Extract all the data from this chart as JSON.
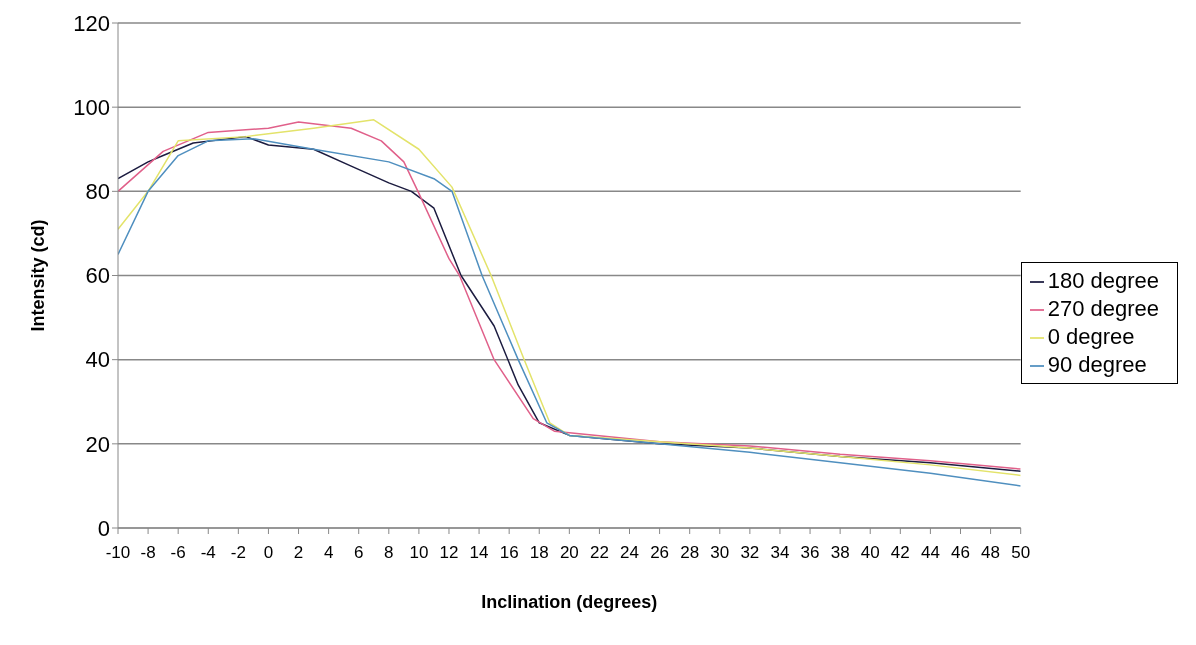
{
  "chart_data": {
    "type": "line",
    "xlabel": "Inclination (degrees)",
    "ylabel": "Intensity (cd)",
    "xlim": [
      -10,
      50
    ],
    "xticks": [
      -10,
      -8,
      -6,
      -4,
      -2,
      0,
      2,
      4,
      6,
      8,
      10,
      12,
      14,
      16,
      18,
      20,
      22,
      24,
      26,
      28,
      30,
      32,
      34,
      36,
      38,
      40,
      42,
      44,
      46,
      48,
      50
    ],
    "ylim": [
      0,
      120
    ],
    "yticks": [
      0,
      20,
      40,
      60,
      80,
      100,
      120
    ],
    "grid": "y",
    "legend": "right",
    "marker": "none",
    "line_style": "solid",
    "series": [
      {
        "name": "180 degree",
        "color": "#1c1c40",
        "x": [
          -10,
          -8,
          -7,
          -5,
          -1.5,
          0,
          3,
          5.5,
          8,
          9.5,
          11,
          12.8,
          15,
          16.6,
          18,
          20,
          26,
          32,
          38,
          44,
          50
        ],
        "values": [
          83,
          87,
          88.5,
          91.5,
          93,
          91,
          90,
          86,
          82,
          80,
          76,
          60,
          48,
          34,
          25,
          22,
          20,
          19,
          17,
          15.5,
          13.5
        ]
      },
      {
        "name": "270 degree",
        "color": "#e0608a",
        "x": [
          -10,
          -7,
          -4,
          0,
          2,
          5.5,
          7.5,
          9,
          10,
          12,
          12.7,
          15,
          17.6,
          19,
          26,
          32,
          38,
          44,
          50
        ],
        "values": [
          80,
          89.5,
          94,
          95,
          96.5,
          95,
          92,
          87,
          79.5,
          64,
          60,
          40,
          26,
          23,
          20.5,
          19.5,
          17.5,
          16,
          14
        ]
      },
      {
        "name": "0 degree",
        "color": "#e3e36a",
        "x": [
          -10,
          -8,
          -6,
          -1.5,
          3,
          7,
          10,
          12.2,
          14.8,
          17,
          18.7,
          20,
          26,
          32,
          38,
          44,
          50
        ],
        "values": [
          71,
          80,
          92,
          93,
          95,
          97,
          90,
          81,
          60,
          40,
          25,
          22,
          20.5,
          19,
          17,
          15,
          12.5
        ]
      },
      {
        "name": "90 degree",
        "color": "#4f8fbf",
        "x": [
          -10,
          -8,
          -6,
          -4,
          -1,
          3,
          8,
          11,
          12.2,
          14.2,
          16.6,
          18.5,
          20,
          26,
          32,
          38,
          44,
          50
        ],
        "values": [
          65,
          80,
          88.5,
          92,
          92.5,
          90,
          87,
          83,
          80,
          60,
          40,
          25,
          22,
          20,
          18,
          15.5,
          13,
          10
        ]
      }
    ]
  }
}
